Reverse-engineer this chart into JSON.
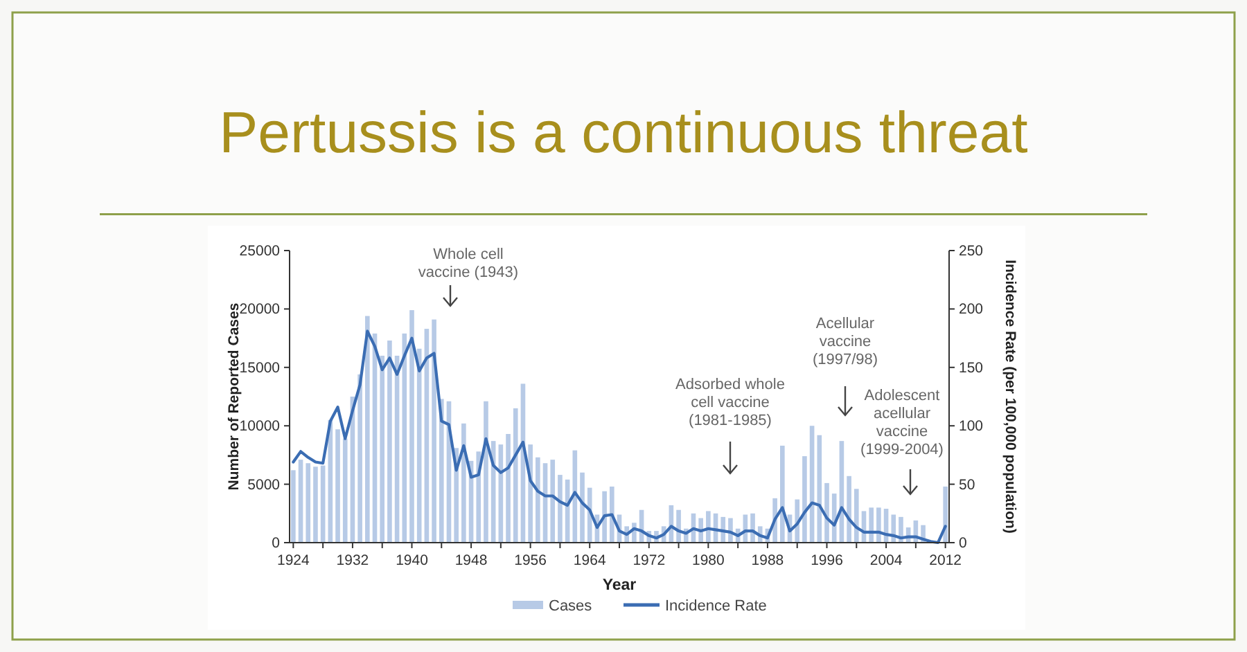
{
  "chart_data": {
    "type": "bar",
    "title": "Pertussis is a continuous threat",
    "xlabel": "Year",
    "ylabel": "Number of Reported Cases",
    "y2label": "Incidence Rate (per 100,000 population)",
    "x": [
      1924,
      1925,
      1926,
      1927,
      1928,
      1929,
      1930,
      1931,
      1932,
      1933,
      1934,
      1935,
      1936,
      1937,
      1938,
      1939,
      1940,
      1941,
      1942,
      1943,
      1944,
      1945,
      1946,
      1947,
      1948,
      1949,
      1950,
      1951,
      1952,
      1953,
      1954,
      1955,
      1956,
      1957,
      1958,
      1959,
      1960,
      1961,
      1962,
      1963,
      1964,
      1965,
      1966,
      1967,
      1968,
      1969,
      1970,
      1971,
      1972,
      1973,
      1974,
      1975,
      1976,
      1977,
      1978,
      1979,
      1980,
      1981,
      1982,
      1983,
      1984,
      1985,
      1986,
      1987,
      1988,
      1989,
      1990,
      1991,
      1992,
      1993,
      1994,
      1995,
      1996,
      1997,
      1998,
      1999,
      2000,
      2001,
      2002,
      2003,
      2004,
      2005,
      2006,
      2007,
      2008,
      2009,
      2010,
      2011,
      2012
    ],
    "xlim": [
      1923.5,
      2012.5
    ],
    "xticks": [
      1924,
      {
        "value": 1928,
        "label": null
      },
      1932,
      {
        "value": 1936,
        "label": null
      },
      1940,
      {
        "value": 1944,
        "label": null
      },
      1948,
      {
        "value": 1952,
        "label": null
      },
      1956,
      {
        "value": 1960,
        "label": null
      },
      1964,
      {
        "value": 1968,
        "label": null
      },
      1972,
      {
        "value": 1976,
        "label": null
      },
      1980,
      {
        "value": 1984,
        "label": null
      },
      1988,
      {
        "value": 1992,
        "label": null
      },
      1996,
      {
        "value": 2000,
        "label": null
      },
      2004,
      {
        "value": 2008,
        "label": null
      },
      2012
    ],
    "ylim": [
      0,
      25000
    ],
    "yticks": [
      0,
      5000,
      10000,
      15000,
      20000,
      25000
    ],
    "y2lim": [
      0,
      250
    ],
    "y2ticks": [
      0,
      50,
      100,
      150,
      200,
      250
    ],
    "series": [
      {
        "name": "Cases",
        "color": "#b7cae6",
        "values": [
          6200,
          7100,
          6800,
          6500,
          6600,
          10500,
          9700,
          8900,
          12500,
          14400,
          19400,
          17900,
          16000,
          17300,
          16000,
          17900,
          19900,
          16600,
          18300,
          19100,
          12300,
          12100,
          8100,
          10200,
          7000,
          7800,
          12100,
          8700,
          8400,
          9300,
          11500,
          13600,
          8400,
          7300,
          6800,
          7100,
          5800,
          5400,
          7900,
          6000,
          4700,
          2400,
          4400,
          4800,
          2400,
          1400,
          1700,
          2800,
          1000,
          1000,
          1400,
          3200,
          2800,
          1200,
          2500,
          2100,
          2700,
          2500,
          2200,
          2100,
          1200,
          2400,
          2500,
          1400,
          1200,
          3800,
          8300,
          2400,
          3700,
          7400,
          10000,
          9200,
          5100,
          4200,
          8700,
          5700,
          4600,
          2700,
          3000,
          3000,
          2900,
          2400,
          2200,
          1300,
          1900,
          1500,
          null,
          null,
          4800
        ]
      },
      {
        "name": "Incidence Rate",
        "type": "line",
        "axis": "y2",
        "color": "#3b6db3",
        "values": [
          69,
          78,
          73,
          69,
          68,
          104,
          116,
          89,
          113,
          135,
          181,
          168,
          148,
          158,
          144,
          160,
          175,
          147,
          158,
          162,
          104,
          101,
          62,
          83,
          56,
          58,
          89,
          66,
          60,
          64,
          75,
          86,
          53,
          44,
          40,
          40,
          35,
          32,
          43,
          34,
          28,
          13,
          23,
          24,
          10,
          7,
          12,
          10,
          6,
          4,
          7,
          14,
          10,
          8,
          12,
          10,
          12,
          11,
          10,
          9,
          6,
          10,
          10,
          6,
          4,
          20,
          30,
          10,
          16,
          26,
          34,
          32,
          21,
          15,
          30,
          20,
          13,
          9,
          9,
          9,
          7,
          6,
          4,
          5,
          5,
          3,
          1,
          0,
          14
        ]
      }
    ],
    "legend": "bottom",
    "annotations": [
      "Whole cell\nvaccine (1943)",
      "Adsorbed whole\ncell vaccine\n(1981-1985)",
      "Acellular\nvaccine\n(1997/98)",
      "Adolescent\nacellular\nvaccine\n(1999-2004)"
    ]
  }
}
